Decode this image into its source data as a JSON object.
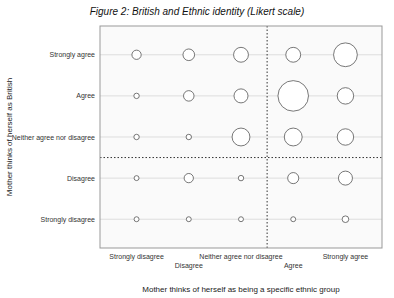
{
  "chart_data": {
    "type": "bubble",
    "title": "Figure 2: British and Ethnic identity (Likert scale)",
    "x_label": "Mother thinks of herself as being a specific ethnic group",
    "y_label": "Mother thinks of herself as British",
    "x": [
      1,
      1,
      1,
      1,
      1,
      2,
      2,
      2,
      2,
      2,
      3,
      3,
      3,
      3,
      3,
      4,
      4,
      4,
      4,
      4,
      5,
      5,
      5,
      5,
      5
    ],
    "values": [
      5,
      4,
      3,
      2,
      1,
      5,
      4,
      3,
      2,
      1,
      5,
      4,
      3,
      2,
      1,
      5,
      4,
      3,
      2,
      1,
      5,
      4,
      3,
      2,
      1
    ],
    "sizes": [
      35,
      12,
      12,
      10,
      10,
      55,
      45,
      12,
      35,
      10,
      90,
      80,
      130,
      12,
      10,
      90,
      380,
      130,
      50,
      10,
      230,
      110,
      110,
      80,
      18
    ],
    "color": "white",
    "xlim": [
      0.3,
      5.7
    ],
    "ylim": [
      0.3,
      5.7
    ],
    "xticks": [
      {
        "value": 1,
        "label": "Strongly disagree"
      },
      {
        "value": 2,
        "label": "Disagree"
      },
      {
        "value": 3,
        "label": "Neither agree nor disagree"
      },
      {
        "value": 4,
        "label": "Agree"
      },
      {
        "value": 5,
        "label": "Strongly agree"
      }
    ],
    "yticks": [
      {
        "value": 1,
        "label": "Strongly disagree"
      },
      {
        "value": 2,
        "label": "Disagree"
      },
      {
        "value": 3,
        "label": "Neither agree nor disagree"
      },
      {
        "value": 4,
        "label": "Agree"
      },
      {
        "value": 5,
        "label": "Strongly agree"
      }
    ],
    "vline": 3.5,
    "hline": 2.5,
    "grid": "y"
  }
}
